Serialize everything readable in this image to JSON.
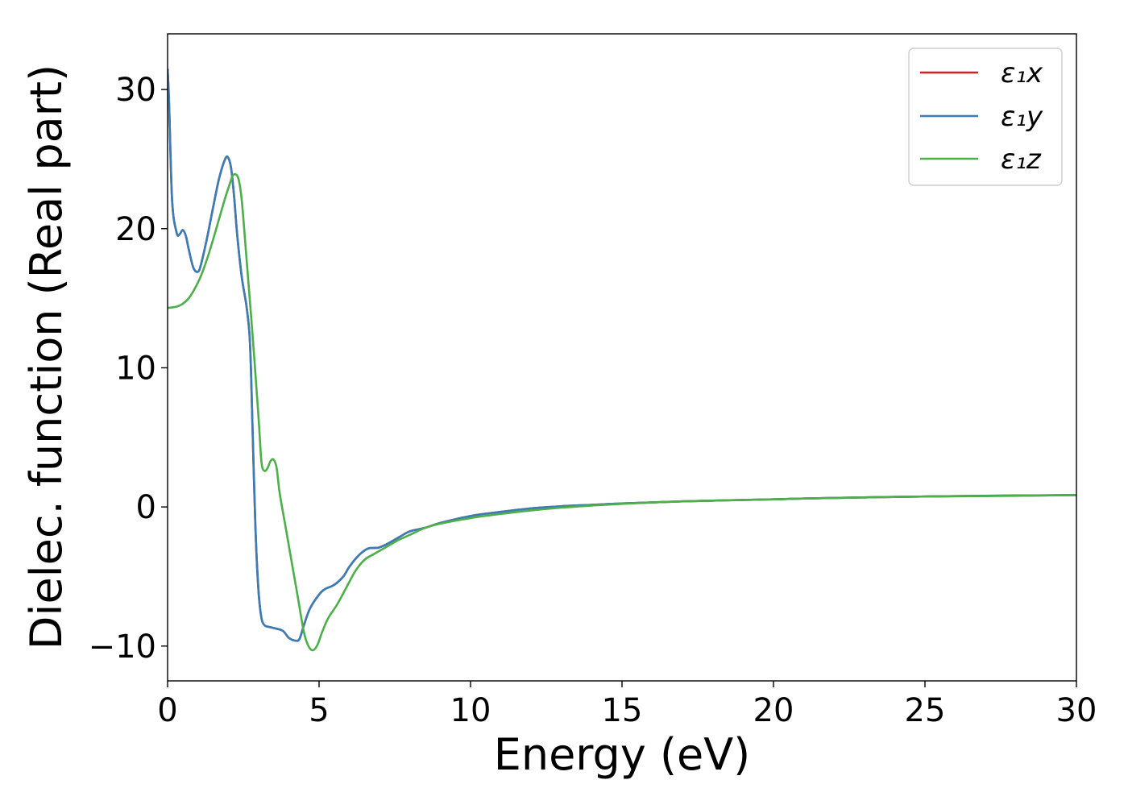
{
  "chart_data": {
    "type": "line",
    "title": "",
    "xlabel": "Energy (eV)",
    "ylabel": "Dielec. function (Real part)",
    "xlim": [
      0,
      30
    ],
    "ylim": [
      -12.5,
      34
    ],
    "xticks": [
      0,
      5,
      10,
      15,
      20,
      25,
      30
    ],
    "xtick_labels": [
      "0",
      "5",
      "10",
      "15",
      "20",
      "25",
      "30"
    ],
    "yticks": [
      -10,
      0,
      10,
      20,
      30
    ],
    "ytick_labels": [
      "−10",
      "0",
      "10",
      "20",
      "30"
    ],
    "grid": false,
    "legend": {
      "position": "top-right"
    },
    "series": [
      {
        "name": "ε₁x",
        "color": "#e41a1c",
        "x": [
          0,
          0.05,
          0.15,
          0.3,
          0.4,
          0.5,
          0.6,
          0.7,
          0.85,
          1.0,
          1.1,
          1.3,
          1.5,
          1.7,
          1.9,
          2.0,
          2.1,
          2.2,
          2.3,
          2.45,
          2.6,
          2.7,
          2.75,
          2.8,
          2.9,
          3.0,
          3.1,
          3.2,
          3.3,
          3.5,
          3.8,
          4.0,
          4.2,
          4.35,
          4.5,
          4.7,
          5.0,
          5.2,
          5.5,
          5.8,
          6.0,
          6.3,
          6.6,
          6.8,
          7.0,
          7.3,
          7.7,
          8.0,
          8.5,
          9.0,
          10,
          11,
          12,
          13,
          14,
          15,
          17,
          20,
          22,
          25,
          28,
          30
        ],
        "values": [
          31.5,
          29.0,
          22.0,
          19.7,
          19.6,
          19.9,
          19.5,
          18.5,
          17.2,
          16.9,
          17.4,
          19.3,
          21.5,
          23.6,
          25.0,
          25.1,
          24.3,
          22.2,
          19.5,
          16.5,
          14.5,
          12.5,
          10.0,
          6.0,
          -1.5,
          -6.0,
          -8.0,
          -8.5,
          -8.6,
          -8.7,
          -8.9,
          -9.4,
          -9.6,
          -9.5,
          -8.5,
          -7.3,
          -6.3,
          -5.9,
          -5.6,
          -5.0,
          -4.3,
          -3.5,
          -3.0,
          -2.95,
          -2.9,
          -2.6,
          -2.1,
          -1.75,
          -1.5,
          -1.15,
          -0.65,
          -0.35,
          -0.1,
          0.05,
          0.15,
          0.25,
          0.4,
          0.55,
          0.65,
          0.75,
          0.82,
          0.85
        ]
      },
      {
        "name": "ε₁y",
        "color": "#377eb8",
        "x": [
          0,
          0.05,
          0.15,
          0.3,
          0.4,
          0.5,
          0.6,
          0.7,
          0.85,
          1.0,
          1.1,
          1.3,
          1.5,
          1.7,
          1.9,
          2.0,
          2.1,
          2.2,
          2.3,
          2.45,
          2.6,
          2.7,
          2.75,
          2.8,
          2.9,
          3.0,
          3.1,
          3.2,
          3.3,
          3.5,
          3.8,
          4.0,
          4.2,
          4.35,
          4.5,
          4.7,
          5.0,
          5.2,
          5.5,
          5.8,
          6.0,
          6.3,
          6.6,
          6.8,
          7.0,
          7.3,
          7.7,
          8.0,
          8.5,
          9.0,
          10,
          11,
          12,
          13,
          14,
          15,
          17,
          20,
          22,
          25,
          28,
          30
        ],
        "values": [
          31.5,
          29.0,
          22.0,
          19.7,
          19.6,
          19.9,
          19.5,
          18.5,
          17.2,
          16.9,
          17.4,
          19.3,
          21.5,
          23.6,
          25.0,
          25.1,
          24.3,
          22.2,
          19.5,
          16.5,
          14.5,
          12.5,
          10.0,
          6.0,
          -1.5,
          -6.0,
          -8.0,
          -8.5,
          -8.6,
          -8.7,
          -8.9,
          -9.4,
          -9.6,
          -9.5,
          -8.5,
          -7.3,
          -6.3,
          -5.9,
          -5.6,
          -5.0,
          -4.3,
          -3.5,
          -3.0,
          -2.95,
          -2.9,
          -2.6,
          -2.1,
          -1.75,
          -1.5,
          -1.15,
          -0.65,
          -0.35,
          -0.1,
          0.05,
          0.15,
          0.25,
          0.4,
          0.55,
          0.65,
          0.75,
          0.82,
          0.85
        ]
      },
      {
        "name": "ε₁z",
        "color": "#4daf4a",
        "x": [
          0,
          0.3,
          0.5,
          0.7,
          0.9,
          1.1,
          1.3,
          1.5,
          1.7,
          1.9,
          2.05,
          2.15,
          2.25,
          2.35,
          2.45,
          2.6,
          2.8,
          3.0,
          3.1,
          3.2,
          3.3,
          3.4,
          3.5,
          3.6,
          3.7,
          3.9,
          4.1,
          4.3,
          4.5,
          4.65,
          4.8,
          4.95,
          5.1,
          5.3,
          5.6,
          5.9,
          6.2,
          6.5,
          6.8,
          7.2,
          7.6,
          8.0,
          8.5,
          9.0,
          10,
          11,
          12,
          13,
          14,
          15,
          17,
          20,
          22,
          25,
          28,
          30
        ],
        "values": [
          14.3,
          14.4,
          14.6,
          15.0,
          15.7,
          16.6,
          17.8,
          19.2,
          20.7,
          22.2,
          23.2,
          23.8,
          23.9,
          23.5,
          22.0,
          18.0,
          12.5,
          6.5,
          3.2,
          2.6,
          2.8,
          3.3,
          3.4,
          2.8,
          1.0,
          -1.5,
          -4.0,
          -6.5,
          -9.0,
          -10.0,
          -10.3,
          -9.9,
          -9.0,
          -8.0,
          -7.0,
          -5.8,
          -4.6,
          -3.8,
          -3.4,
          -2.9,
          -2.4,
          -2.0,
          -1.5,
          -1.2,
          -0.8,
          -0.5,
          -0.25,
          -0.05,
          0.1,
          0.22,
          0.4,
          0.55,
          0.65,
          0.75,
          0.8,
          0.85
        ]
      }
    ]
  }
}
